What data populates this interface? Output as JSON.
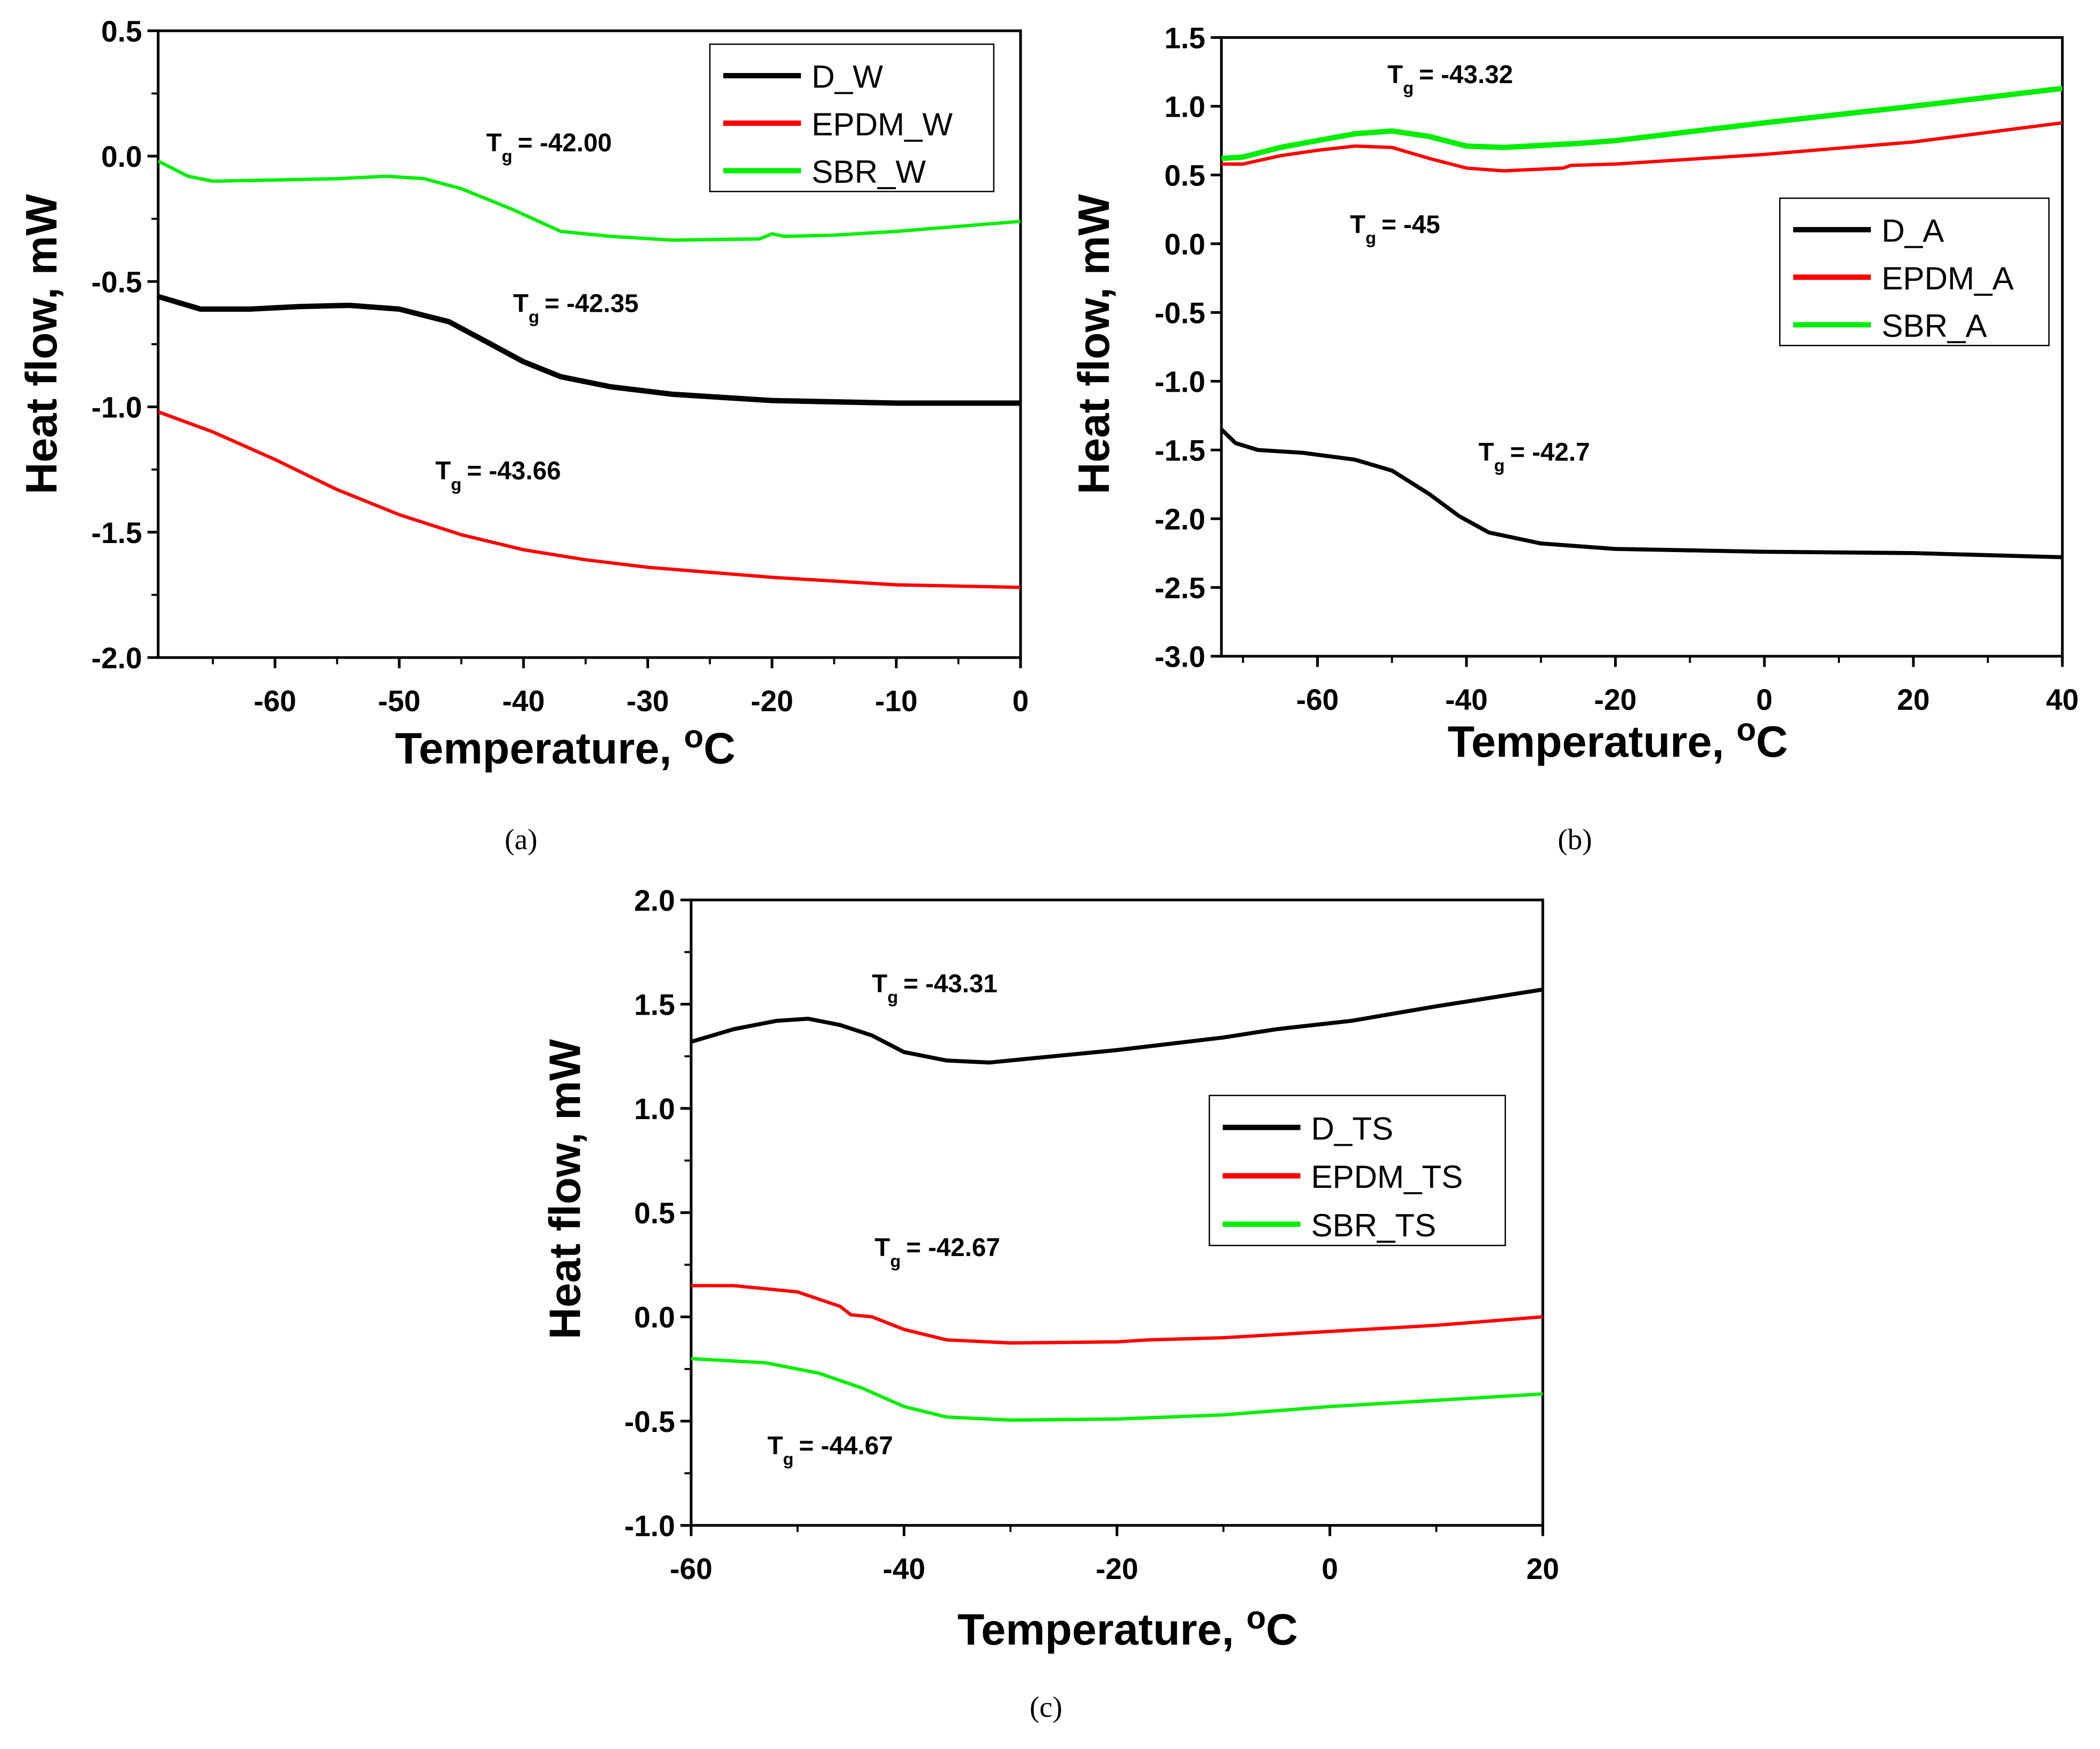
{
  "chart_data": [
    {
      "id": "a",
      "type": "line",
      "caption": "(a)",
      "xlabel": "Temperature, ",
      "xlabel_sup": "o",
      "xlabel_unit": "C",
      "ylabel": "Heat flow, mW",
      "xlim": [
        -69.4,
        0
      ],
      "ylim": [
        -2.0,
        0.5
      ],
      "xticks": [
        -60,
        -50,
        -40,
        -30,
        -20,
        -10,
        0
      ],
      "xminor": 5,
      "yticks": [
        0.5,
        0.0,
        -0.5,
        -1.0,
        -1.5,
        -2.0
      ],
      "yminor": 0.25,
      "series": [
        {
          "name": "D_W",
          "color": "#000000",
          "width": 4,
          "points": [
            [
              -69.4,
              -0.56
            ],
            [
              -66,
              -0.61
            ],
            [
              -62,
              -0.61
            ],
            [
              -58,
              -0.6
            ],
            [
              -54,
              -0.595
            ],
            [
              -50,
              -0.61
            ],
            [
              -46,
              -0.66
            ],
            [
              -43,
              -0.74
            ],
            [
              -40,
              -0.82
            ],
            [
              -37,
              -0.88
            ],
            [
              -33,
              -0.92
            ],
            [
              -28,
              -0.95
            ],
            [
              -20,
              -0.975
            ],
            [
              -10,
              -0.985
            ],
            [
              0,
              -0.985
            ]
          ]
        },
        {
          "name": "EPDM_W",
          "color": "#ff0000",
          "width": 2.5,
          "points": [
            [
              -69.4,
              -1.02
            ],
            [
              -65,
              -1.1
            ],
            [
              -60,
              -1.21
            ],
            [
              -55,
              -1.33
            ],
            [
              -50,
              -1.43
            ],
            [
              -45,
              -1.51
            ],
            [
              -40,
              -1.57
            ],
            [
              -35,
              -1.61
            ],
            [
              -30,
              -1.64
            ],
            [
              -20,
              -1.68
            ],
            [
              -10,
              -1.71
            ],
            [
              0,
              -1.72
            ]
          ]
        },
        {
          "name": "SBR_W",
          "color": "#00ee00",
          "width": 2.5,
          "points": [
            [
              -69.4,
              -0.02
            ],
            [
              -67,
              -0.08
            ],
            [
              -65,
              -0.1
            ],
            [
              -60,
              -0.095
            ],
            [
              -55,
              -0.09
            ],
            [
              -51,
              -0.08
            ],
            [
              -48,
              -0.09
            ],
            [
              -45,
              -0.13
            ],
            [
              -41,
              -0.21
            ],
            [
              -37,
              -0.3
            ],
            [
              -33,
              -0.32
            ],
            [
              -28,
              -0.335
            ],
            [
              -21,
              -0.33
            ],
            [
              -20,
              -0.31
            ],
            [
              -19,
              -0.32
            ],
            [
              -15,
              -0.315
            ],
            [
              -10,
              -0.3
            ],
            [
              0,
              -0.26
            ]
          ]
        }
      ],
      "annotations": [
        "= -42.00",
        "= -42.35",
        "= -43.66"
      ]
    },
    {
      "id": "b",
      "type": "line",
      "caption": "(b)",
      "xlabel": "Temperature, ",
      "xlabel_sup": "o",
      "xlabel_unit": "C",
      "ylabel": "Heat flow, mW",
      "xlim": [
        -72.9,
        40
      ],
      "ylim": [
        -3.0,
        1.5
      ],
      "xticks": [
        -60,
        -40,
        -20,
        0,
        20,
        40
      ],
      "xminor": 10,
      "yticks": [
        1.5,
        1.0,
        0.5,
        0.0,
        -0.5,
        -1.0,
        -1.5,
        -2.0,
        -2.5,
        -3.0
      ],
      "yminor": 0,
      "series": [
        {
          "name": "D_A",
          "color": "#000000",
          "width": 3,
          "points": [
            [
              -72.9,
              -1.35
            ],
            [
              -71,
              -1.45
            ],
            [
              -68,
              -1.5
            ],
            [
              -62,
              -1.52
            ],
            [
              -55,
              -1.57
            ],
            [
              -50,
              -1.65
            ],
            [
              -45,
              -1.82
            ],
            [
              -41,
              -1.98
            ],
            [
              -37,
              -2.1
            ],
            [
              -30,
              -2.18
            ],
            [
              -20,
              -2.22
            ],
            [
              0,
              -2.24
            ],
            [
              20,
              -2.25
            ],
            [
              40,
              -2.28
            ]
          ]
        },
        {
          "name": "EPDM_A",
          "color": "#ff0000",
          "width": 2.5,
          "points": [
            [
              -72.9,
              0.58
            ],
            [
              -70,
              0.58
            ],
            [
              -65,
              0.64
            ],
            [
              -60,
              0.68
            ],
            [
              -55,
              0.71
            ],
            [
              -50,
              0.7
            ],
            [
              -45,
              0.62
            ],
            [
              -40,
              0.55
            ],
            [
              -35,
              0.53
            ],
            [
              -27,
              0.55
            ],
            [
              -26,
              0.57
            ],
            [
              -20,
              0.58
            ],
            [
              0,
              0.65
            ],
            [
              20,
              0.74
            ],
            [
              40,
              0.88
            ]
          ]
        },
        {
          "name": "SBR_A",
          "color": "#00ee00",
          "width": 4,
          "points": [
            [
              -72.9,
              0.62
            ],
            [
              -70,
              0.63
            ],
            [
              -65,
              0.7
            ],
            [
              -60,
              0.75
            ],
            [
              -55,
              0.8
            ],
            [
              -50,
              0.82
            ],
            [
              -45,
              0.78
            ],
            [
              -40,
              0.71
            ],
            [
              -35,
              0.7
            ],
            [
              -25,
              0.73
            ],
            [
              -20,
              0.75
            ],
            [
              0,
              0.88
            ],
            [
              20,
              1.0
            ],
            [
              40,
              1.13
            ]
          ]
        }
      ],
      "annotations": [
        "= -43.32",
        "= -45",
        "= -42.7"
      ]
    },
    {
      "id": "c",
      "type": "line",
      "caption": "(c)",
      "xlabel": "Temperature, ",
      "xlabel_sup": "o",
      "xlabel_unit": "C",
      "ylabel": "Heat flow, mW",
      "xlim": [
        -60,
        20
      ],
      "ylim": [
        -1.0,
        2.0
      ],
      "xticks": [
        -60,
        -40,
        -20,
        0,
        20
      ],
      "xminor": 10,
      "yticks": [
        2.0,
        1.5,
        1.0,
        0.5,
        0.0,
        -0.5,
        -1.0
      ],
      "yminor": 0.25,
      "series": [
        {
          "name": "D_TS",
          "color": "#000000",
          "width": 3,
          "points": [
            [
              -60,
              1.32
            ],
            [
              -56,
              1.38
            ],
            [
              -52,
              1.42
            ],
            [
              -49,
              1.43
            ],
            [
              -46,
              1.4
            ],
            [
              -43,
              1.35
            ],
            [
              -40,
              1.27
            ],
            [
              -36,
              1.23
            ],
            [
              -32,
              1.22
            ],
            [
              -28,
              1.24
            ],
            [
              -20,
              1.28
            ],
            [
              -10,
              1.34
            ],
            [
              -5,
              1.38
            ],
            [
              2,
              1.42
            ],
            [
              10,
              1.49
            ],
            [
              20,
              1.57
            ]
          ]
        },
        {
          "name": "EPDM_TS",
          "color": "#ff0000",
          "width": 2.5,
          "points": [
            [
              -60,
              0.15
            ],
            [
              -56,
              0.15
            ],
            [
              -50,
              0.12
            ],
            [
              -46,
              0.05
            ],
            [
              -45,
              0.01
            ],
            [
              -43,
              0
            ],
            [
              -40,
              -0.06
            ],
            [
              -36,
              -0.11
            ],
            [
              -30,
              -0.125
            ],
            [
              -20,
              -0.12
            ],
            [
              -17,
              -0.11
            ],
            [
              -10,
              -0.1
            ],
            [
              0,
              -0.07
            ],
            [
              10,
              -0.04
            ],
            [
              20,
              0
            ]
          ]
        },
        {
          "name": "SBR_TS",
          "color": "#00ee00",
          "width": 2.5,
          "points": [
            [
              -60,
              -0.2
            ],
            [
              -53,
              -0.22
            ],
            [
              -48,
              -0.27
            ],
            [
              -44,
              -0.34
            ],
            [
              -40,
              -0.43
            ],
            [
              -36,
              -0.48
            ],
            [
              -30,
              -0.495
            ],
            [
              -20,
              -0.49
            ],
            [
              -10,
              -0.47
            ],
            [
              0,
              -0.43
            ],
            [
              10,
              -0.4
            ],
            [
              20,
              -0.37
            ]
          ]
        }
      ],
      "annotations": [
        "= -43.31",
        "= -42.67",
        "= -44.67"
      ]
    }
  ],
  "tg_symbol": "T",
  "tg_sub": "g"
}
